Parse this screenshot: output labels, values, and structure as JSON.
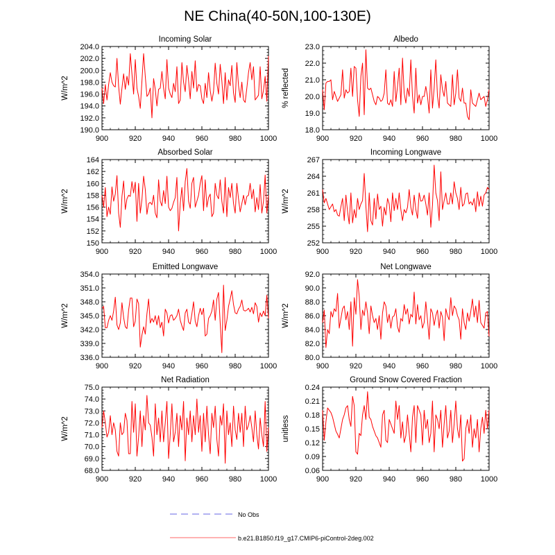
{
  "figure": {
    "title": "NE China(40-50N,100-130E)"
  },
  "legend": [
    {
      "label": "No Obs",
      "color": "#9999ee",
      "dashed": true
    },
    {
      "label": "b.e21.B1850.f19_g17.CMIP6-piControl-2deg.002",
      "color": "#ff9999",
      "dashed": false
    }
  ],
  "chart_data": [
    {
      "type": "line",
      "title": "Incoming Solar",
      "ylabel": "W/m^2",
      "xlim": [
        900,
        1000
      ],
      "ylim": [
        190,
        204
      ],
      "yticks": [
        190,
        192,
        194,
        196,
        198,
        200,
        202,
        204
      ],
      "ydec": 1,
      "xticks": [
        900,
        920,
        940,
        960,
        980,
        1000
      ],
      "x_start": 900,
      "x_step": 1,
      "color": "#ff0000",
      "values": [
        197.0,
        194.4,
        197.6,
        195.0,
        197.6,
        199.6,
        198.0,
        197.4,
        197.2,
        202.0,
        197.3,
        194.3,
        197.0,
        199.4,
        196.8,
        199.0,
        197.5,
        202.8,
        199.4,
        196.0,
        201.8,
        197.0,
        195.6,
        193.6,
        198.2,
        202.8,
        199.0,
        195.6,
        196.0,
        197.0,
        192.0,
        198.6,
        196.8,
        194.0,
        196.8,
        197.0,
        199.8,
        197.0,
        195.2,
        201.8,
        197.0,
        196.0,
        195.4,
        197.8,
        196.4,
        200.6,
        194.4,
        195.0,
        201.3,
        198.0,
        196.4,
        200.8,
        198.3,
        195.2,
        199.8,
        197.0,
        201.6,
        196.4,
        197.6,
        197.4,
        195.2,
        194.4,
        197.8,
        195.4,
        199.6,
        196.6,
        194.8,
        196.4,
        201.2,
        197.8,
        196.0,
        201.0,
        198.2,
        194.4,
        199.6,
        195.0,
        198.4,
        197.4,
        200.8,
        196.2,
        194.6,
        201.3,
        197.4,
        195.4,
        198.0,
        195.0,
        194.6,
        197.0,
        199.6,
        201.3,
        198.4,
        200.6,
        195.0,
        195.4,
        195.8,
        200.6,
        195.2,
        196.6,
        199.0,
        194.8,
        202.4
      ]
    },
    {
      "type": "line",
      "title": "Albedo",
      "ylabel": "% reflected",
      "xlim": [
        900,
        1000
      ],
      "ylim": [
        18,
        23
      ],
      "yticks": [
        18,
        19,
        20,
        21,
        22,
        23
      ],
      "ydec": 1,
      "xticks": [
        900,
        920,
        940,
        960,
        980,
        1000
      ],
      "x_start": 900,
      "x_step": 1,
      "color": "#ff0000",
      "values": [
        20.4,
        19.2,
        20.8,
        20.9,
        20.9,
        21.0,
        19.8,
        20.3,
        20.0,
        19.7,
        19.9,
        20.1,
        21.6,
        19.9,
        20.4,
        20.2,
        20.3,
        21.7,
        20.0,
        21.8,
        21.7,
        19.8,
        18.8,
        21.2,
        22.0,
        18.9,
        22.8,
        20.5,
        20.4,
        20.5,
        20.1,
        19.7,
        19.5,
        20.0,
        19.9,
        19.7,
        19.8,
        20.2,
        21.6,
        19.6,
        19.5,
        19.8,
        19.4,
        21.5,
        19.7,
        20.6,
        21.7,
        19.5,
        22.3,
        20.2,
        19.6,
        20.5,
        20.0,
        22.2,
        20.0,
        19.0,
        21.7,
        19.6,
        20.1,
        19.5,
        20.0,
        20.0,
        20.6,
        20.0,
        19.0,
        21.6,
        19.3,
        20.5,
        22.2,
        20.0,
        19.3,
        21.3,
        20.4,
        20.0,
        20.9,
        19.6,
        19.5,
        19.4,
        21.3,
        19.5,
        20.2,
        21.6,
        19.9,
        19.7,
        20.5,
        19.6,
        19.6,
        18.8,
        18.6,
        20.4,
        19.6,
        19.5,
        19.4,
        19.8,
        20.2,
        19.8,
        19.9,
        20.0,
        19.4,
        19.8,
        20.4
      ]
    },
    {
      "type": "line",
      "title": "Absorbed Solar",
      "ylabel": "W/m^2",
      "xlim": [
        900,
        1000
      ],
      "ylim": [
        150,
        164
      ],
      "yticks": [
        150,
        152,
        154,
        156,
        158,
        160,
        162,
        164
      ],
      "ydec": 0,
      "xticks": [
        900,
        920,
        940,
        960,
        980,
        1000
      ],
      "x_start": 900,
      "x_step": 1,
      "color": "#ff0000",
      "values": [
        158.0,
        156.0,
        159.3,
        154.4,
        156.0,
        154.8,
        159.4,
        157.0,
        158.2,
        161.3,
        155.0,
        152.6,
        157.8,
        160.4,
        155.6,
        157.4,
        158.0,
        157.8,
        160.3,
        158.4,
        160.2,
        153.6,
        160.0,
        155.0,
        157.3,
        161.2,
        159.0,
        154.8,
        156.6,
        156.8,
        156.4,
        158.0,
        155.0,
        154.2,
        160.6,
        157.0,
        156.2,
        158.8,
        156.6,
        161.2,
        156.0,
        155.4,
        155.8,
        156.8,
        157.6,
        161.0,
        152.0,
        156.6,
        159.3,
        155.4,
        160.3,
        162.5,
        157.0,
        155.8,
        160.0,
        161.0,
        156.0,
        157.0,
        158.0,
        160.0,
        161.3,
        155.4,
        160.6,
        156.0,
        157.6,
        158.2,
        154.4,
        155.0,
        160.0,
        158.0,
        157.4,
        160.6,
        157.0,
        155.0,
        161.0,
        154.4,
        159.3,
        157.6,
        160.0,
        156.6,
        155.0,
        160.0,
        157.4,
        155.2,
        156.6,
        158.0,
        156.4,
        157.8,
        158.0,
        160.0,
        157.4,
        159.0,
        155.2,
        157.6,
        155.6,
        159.8,
        155.0,
        157.0,
        161.4,
        155.0,
        158.0
      ]
    },
    {
      "type": "line",
      "title": "Incoming Longwave",
      "ylabel": "W/m^2",
      "xlim": [
        900,
        1000
      ],
      "ylim": [
        252,
        267
      ],
      "yticks": [
        252,
        255,
        258,
        261,
        264,
        267
      ],
      "ydec": 0,
      "xticks": [
        900,
        920,
        940,
        960,
        980,
        1000
      ],
      "x_start": 900,
      "x_step": 1,
      "color": "#ff0000",
      "values": [
        261.6,
        259.2,
        260.0,
        259.0,
        258.0,
        258.5,
        259.0,
        257.6,
        258.0,
        257.0,
        256.8,
        258.5,
        260.0,
        256.0,
        260.6,
        257.6,
        255.4,
        261.0,
        255.6,
        258.0,
        256.5,
        260.0,
        258.0,
        259.0,
        259.6,
        264.5,
        258.6,
        254.0,
        261.0,
        256.0,
        255.2,
        260.0,
        256.3,
        260.8,
        258.0,
        258.6,
        255.0,
        258.4,
        257.0,
        260.0,
        259.0,
        255.8,
        261.0,
        257.8,
        260.0,
        258.0,
        261.0,
        258.0,
        256.0,
        258.0,
        257.4,
        258.4,
        261.6,
        258.4,
        257.0,
        260.6,
        258.0,
        256.4,
        261.0,
        259.5,
        259.6,
        260.6,
        259.0,
        257.0,
        261.0,
        254.8,
        258.8,
        266.0,
        261.0,
        259.6,
        256.0,
        264.8,
        258.0,
        259.6,
        261.0,
        259.0,
        259.0,
        261.0,
        259.0,
        263.0,
        261.0,
        260.0,
        258.0,
        262.0,
        258.6,
        259.0,
        260.8,
        261.0,
        259.0,
        259.4,
        258.8,
        260.0,
        257.6,
        261.2,
        258.6,
        260.4,
        258.6,
        260.6,
        261.0,
        262.0,
        261.6
      ]
    },
    {
      "type": "line",
      "title": "Emitted Longwave",
      "ylabel": "W/m^2",
      "xlim": [
        900,
        1000
      ],
      "ylim": [
        336,
        354
      ],
      "yticks": [
        336,
        339,
        342,
        345,
        348,
        351,
        354
      ],
      "ydec": 1,
      "xticks": [
        900,
        920,
        940,
        960,
        980,
        1000
      ],
      "x_start": 900,
      "x_step": 1,
      "color": "#ff0000",
      "values": [
        346.6,
        347.0,
        342.4,
        342.4,
        344.0,
        345.0,
        344.0,
        346.0,
        349.0,
        343.0,
        342.0,
        343.4,
        347.8,
        344.6,
        342.6,
        342.2,
        346.2,
        348.8,
        348.8,
        342.6,
        343.8,
        348.6,
        347.6,
        338.2,
        340.8,
        342.6,
        341.0,
        345.4,
        348.6,
        343.4,
        344.4,
        343.6,
        345.0,
        343.0,
        345.0,
        342.4,
        343.6,
        340.6,
        346.4,
        345.6,
        343.4,
        345.0,
        345.2,
        344.0,
        344.4,
        345.0,
        346.4,
        344.0,
        342.8,
        341.8,
        345.6,
        346.4,
        343.6,
        343.2,
        345.4,
        348.0,
        343.8,
        342.6,
        345.0,
        346.6,
        345.2,
        346.6,
        340.6,
        341.0,
        344.4,
        345.0,
        346.0,
        348.4,
        344.0,
        348.6,
        350.0,
        343.4,
        337.0,
        351.6,
        341.8,
        344.0,
        347.0,
        348.6,
        350.4,
        347.4,
        345.6,
        345.4,
        346.4,
        347.0,
        348.4,
        346.2,
        346.0,
        346.2,
        346.6,
        345.8,
        346.8,
        345.4,
        347.8,
        347.0,
        343.6,
        345.6,
        344.8,
        346.0,
        345.0,
        349.4,
        344.4
      ]
    },
    {
      "type": "line",
      "title": "Net Longwave",
      "ylabel": "W/m^2",
      "xlim": [
        900,
        1000
      ],
      "ylim": [
        80,
        92
      ],
      "yticks": [
        80,
        82,
        84,
        86,
        88,
        90,
        92
      ],
      "ydec": 1,
      "xticks": [
        900,
        920,
        940,
        960,
        980,
        1000
      ],
      "x_start": 900,
      "x_step": 1,
      "color": "#ff0000",
      "values": [
        85.0,
        86.8,
        81.4,
        84.0,
        83.4,
        86.6,
        85.8,
        87.0,
        86.6,
        89.2,
        84.2,
        85.6,
        87.0,
        87.4,
        85.4,
        86.6,
        84.0,
        88.0,
        81.6,
        88.6,
        86.2,
        91.2,
        88.8,
        84.0,
        86.8,
        86.0,
        88.0,
        86.4,
        83.4,
        87.4,
        86.0,
        85.0,
        85.6,
        84.0,
        86.0,
        82.6,
        86.4,
        88.0,
        87.4,
        85.0,
        86.2,
        84.2,
        85.8,
        86.0,
        87.0,
        84.4,
        83.6,
        85.6,
        85.2,
        87.6,
        86.2,
        87.0,
        84.8,
        86.2,
        85.8,
        89.4,
        84.8,
        87.6,
        85.4,
        86.0,
        84.2,
        85.0,
        88.0,
        85.4,
        82.6,
        87.0,
        86.4,
        84.6,
        86.0,
        86.8,
        84.2,
        86.6,
        85.8,
        82.4,
        87.0,
        86.0,
        85.4,
        88.6,
        86.0,
        87.4,
        87.0,
        86.0,
        85.4,
        82.6,
        87.0,
        85.0,
        84.0,
        86.4,
        85.2,
        86.6,
        88.4,
        85.8,
        87.4,
        85.0,
        88.2,
        85.0,
        84.6,
        84.2,
        86.4,
        86.6,
        83.0
      ]
    },
    {
      "type": "line",
      "title": "Net Radiation",
      "ylabel": "W/m^2",
      "xlim": [
        900,
        1000
      ],
      "ylim": [
        68,
        75
      ],
      "yticks": [
        68,
        69,
        70,
        71,
        72,
        73,
        74,
        75
      ],
      "ydec": 1,
      "xticks": [
        900,
        920,
        940,
        960,
        980,
        1000
      ],
      "x_start": 900,
      "x_step": 1,
      "color": "#ff0000",
      "values": [
        71.6,
        73.0,
        72.0,
        70.8,
        71.2,
        72.6,
        71.0,
        72.0,
        71.4,
        69.6,
        69.2,
        72.0,
        71.0,
        71.2,
        72.8,
        72.2,
        69.4,
        69.4,
        73.8,
        71.2,
        73.6,
        69.2,
        70.8,
        73.0,
        70.0,
        72.6,
        71.4,
        74.3,
        72.0,
        71.8,
        70.8,
        69.2,
        73.6,
        71.0,
        72.4,
        70.4,
        73.0,
        70.4,
        72.0,
        73.8,
        69.0,
        71.0,
        73.6,
        70.4,
        71.2,
        72.8,
        70.0,
        72.6,
        71.4,
        73.8,
        68.8,
        72.4,
        71.0,
        73.0,
        70.4,
        72.6,
        71.0,
        74.0,
        71.2,
        72.6,
        69.6,
        72.8,
        70.4,
        73.4,
        71.0,
        69.4,
        72.8,
        71.6,
        73.4,
        70.6,
        69.2,
        72.6,
        71.8,
        73.6,
        68.6,
        73.0,
        71.0,
        72.0,
        70.0,
        73.4,
        71.4,
        70.6,
        72.8,
        71.2,
        72.8,
        70.0,
        73.4,
        71.4,
        71.8,
        72.6,
        71.6,
        70.4,
        73.0,
        71.0,
        69.8,
        72.4,
        71.0,
        70.0,
        73.8,
        69.6,
        71.6
      ]
    },
    {
      "type": "line",
      "title": "Ground Snow Covered Fraction",
      "ylabel": "unitless",
      "xlim": [
        900,
        1000
      ],
      "ylim": [
        0.06,
        0.24
      ],
      "yticks": [
        0.06,
        0.09,
        0.12,
        0.15,
        0.18,
        0.21,
        0.24
      ],
      "ydec": 2,
      "xticks": [
        900,
        920,
        940,
        960,
        980,
        1000
      ],
      "x_start": 900,
      "x_step": 1,
      "color": "#ff0000",
      "values": [
        0.19,
        0.125,
        0.165,
        0.195,
        0.19,
        0.185,
        0.175,
        0.16,
        0.145,
        0.138,
        0.13,
        0.15,
        0.17,
        0.18,
        0.195,
        0.2,
        0.17,
        0.155,
        0.22,
        0.2,
        0.1,
        0.095,
        0.14,
        0.135,
        0.18,
        0.2,
        0.17,
        0.23,
        0.175,
        0.17,
        0.155,
        0.145,
        0.135,
        0.13,
        0.12,
        0.11,
        0.18,
        0.19,
        0.125,
        0.12,
        0.17,
        0.16,
        0.15,
        0.14,
        0.21,
        0.17,
        0.2,
        0.13,
        0.165,
        0.12,
        0.135,
        0.18,
        0.14,
        0.1,
        0.175,
        0.2,
        0.12,
        0.2,
        0.19,
        0.18,
        0.115,
        0.19,
        0.15,
        0.17,
        0.12,
        0.14,
        0.21,
        0.1,
        0.18,
        0.17,
        0.15,
        0.19,
        0.11,
        0.16,
        0.2,
        0.13,
        0.145,
        0.19,
        0.12,
        0.16,
        0.21,
        0.15,
        0.13,
        0.18,
        0.08,
        0.085,
        0.15,
        0.17,
        0.14,
        0.18,
        0.11,
        0.15,
        0.13,
        0.17,
        0.1,
        0.15,
        0.175,
        0.14,
        0.19,
        0.15,
        0.19
      ]
    }
  ]
}
